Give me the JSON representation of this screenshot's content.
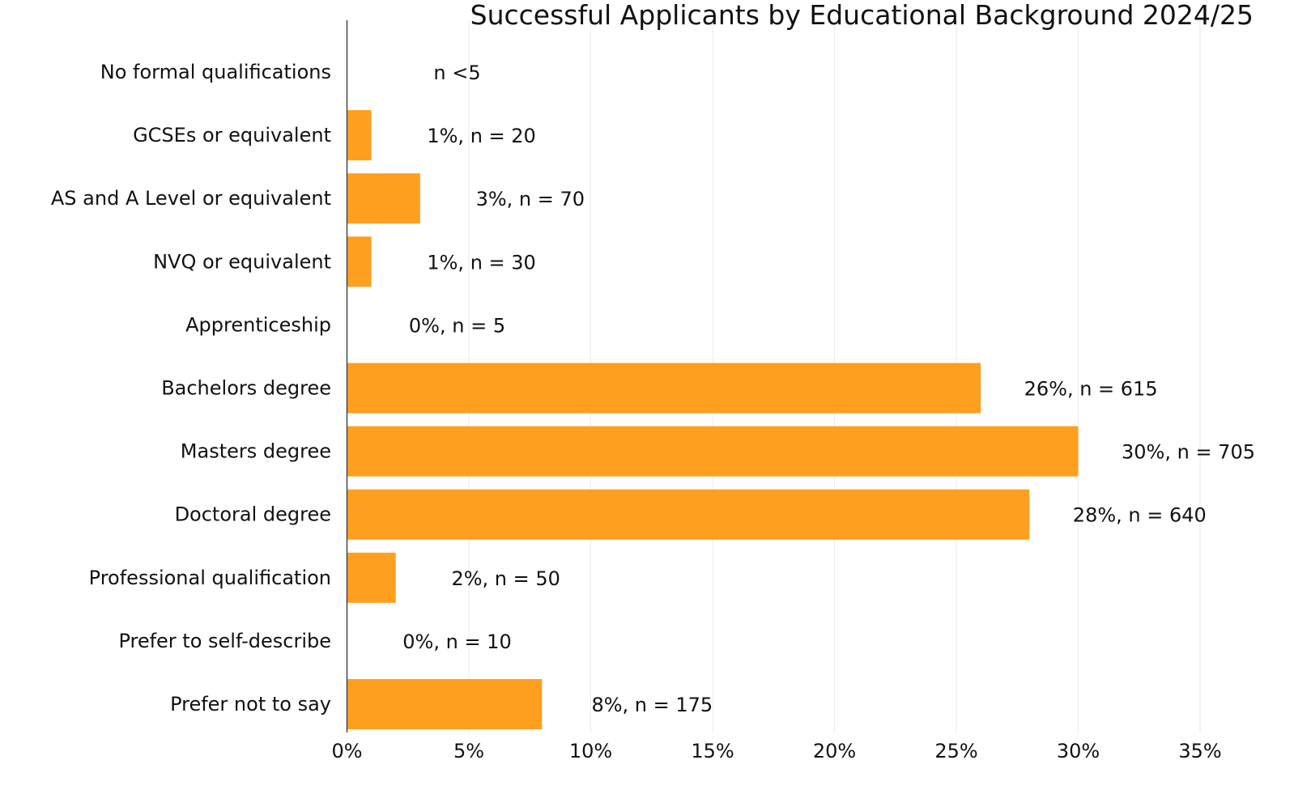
{
  "chart_data": {
    "type": "bar",
    "orientation": "horizontal",
    "title": "Successful Applicants by Educational Background 2024/25",
    "xlabel": "",
    "ylabel": "",
    "xlim": [
      0,
      35
    ],
    "x_ticks": [
      "0%",
      "5%",
      "10%",
      "15%",
      "20%",
      "25%",
      "30%",
      "35%"
    ],
    "x_tick_values": [
      0,
      5,
      10,
      15,
      20,
      25,
      30,
      35
    ],
    "grid": true,
    "bar_color": "#FF9F1F",
    "categories": [
      "No formal qualifications",
      "GCSEs or equivalent",
      "AS and A Level or equivalent",
      "NVQ or equivalent",
      "Apprenticeship",
      "Bachelors degree",
      "Masters degree",
      "Doctoral degree",
      "Professional qualification",
      "Prefer to self-describe",
      "Prefer not to say"
    ],
    "values": [
      0,
      1,
      3,
      1,
      0,
      26,
      30,
      28,
      2,
      0,
      8
    ],
    "data_labels": [
      "n <5",
      "1%, n = 20",
      "3%, n = 70",
      "1%, n = 30",
      "0%, n = 5",
      "26%, n = 615",
      "30%, n = 705",
      "28%, n = 640",
      "2%, n = 50",
      "0%, n = 10",
      "8%, n = 175"
    ]
  }
}
